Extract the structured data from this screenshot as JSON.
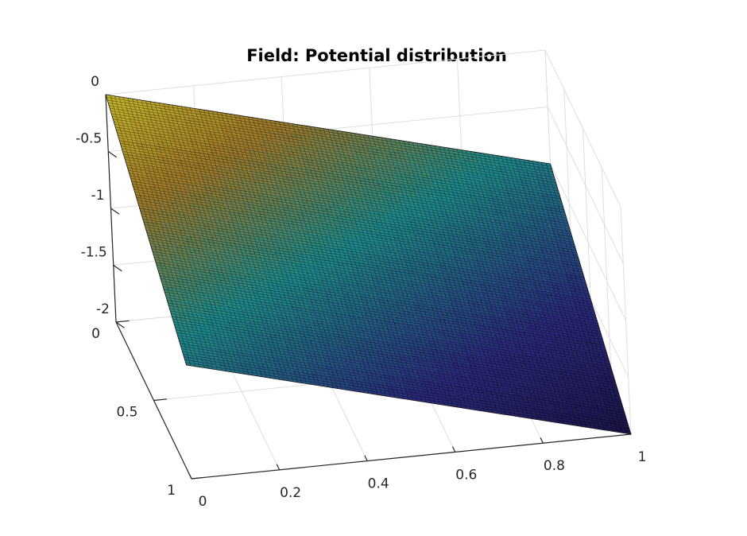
{
  "chart_data": {
    "type": "surface",
    "title": "Field: Potential distribution",
    "xlabel": "",
    "ylabel": "",
    "zlabel": "",
    "xlim": [
      0,
      1
    ],
    "ylim": [
      0,
      1
    ],
    "zlim": [
      -2,
      0
    ],
    "x_ticks": [
      "0",
      "0.2",
      "0.4",
      "0.6",
      "0.8",
      "1"
    ],
    "y_ticks": [
      "0",
      "0.5",
      "1"
    ],
    "z_ticks": [
      "0",
      "-0.5",
      "-1",
      "-1.5",
      "-2"
    ],
    "grid": true,
    "colormap": "parula",
    "mesh_resolution": 100,
    "surface_corners": [
      {
        "x": 0,
        "y": 0,
        "z": 0
      },
      {
        "x": 1,
        "y": 0,
        "z": -1
      },
      {
        "x": 0,
        "y": 1,
        "z": -1
      },
      {
        "x": 1,
        "y": 1,
        "z": -2
      }
    ],
    "function": "z = -(x + y)"
  },
  "colors": {
    "high": "#c8b82b",
    "mid_high": "#a07a2a",
    "mid": "#1f8a8a",
    "low": "#2a2a7a",
    "lowest": "#1b1448"
  }
}
